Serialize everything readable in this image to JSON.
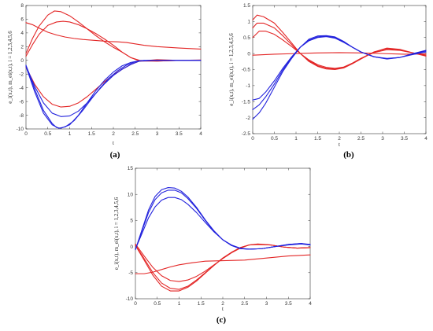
{
  "chart_data": [
    {
      "type": "line",
      "caption": "(a)",
      "xlabel": "t",
      "ylabel": "e_i(x,t), m_ei(x,t), i = 1,2,3,4,5,6",
      "xlim": [
        0,
        4
      ],
      "ylim": [
        -10,
        8
      ],
      "xticks": [
        "0",
        "0.5",
        "1",
        "1.5",
        "2",
        "2.5",
        "3",
        "3.5",
        "4"
      ],
      "yticks": [
        "-10",
        "-8",
        "-6",
        "-4",
        "-2",
        "0",
        "2",
        "4",
        "6",
        "8"
      ],
      "grid": false,
      "series": [
        {
          "color": "#e32626",
          "x": [
            0,
            0.15,
            0.3,
            0.5,
            0.7,
            0.9,
            1.1,
            1.3,
            1.5,
            1.7,
            1.9,
            2.1,
            2.3,
            2.5,
            2.7,
            3,
            3.5,
            4
          ],
          "y": [
            5.5,
            5.2,
            4.7,
            4.1,
            3.7,
            3.4,
            3.2,
            3.05,
            2.95,
            2.85,
            2.75,
            2.7,
            2.6,
            2.4,
            2.2,
            2,
            1.8,
            1.65
          ]
        },
        {
          "color": "#e32626",
          "x": [
            0,
            0.15,
            0.3,
            0.5,
            0.7,
            0.85,
            1,
            1.2,
            1.4,
            1.6,
            1.8,
            2,
            2.2,
            2.4,
            2.6,
            3,
            3.5,
            4
          ],
          "y": [
            0.6,
            2.3,
            3.8,
            5.1,
            5.6,
            5.7,
            5.6,
            5.2,
            4.6,
            3.9,
            3.1,
            2.2,
            1.2,
            0.4,
            0,
            -0.1,
            0,
            0.05
          ]
        },
        {
          "color": "#e32626",
          "x": [
            0,
            0.15,
            0.3,
            0.5,
            0.65,
            0.8,
            1,
            1.2,
            1.4,
            1.6,
            1.8,
            2,
            2.2,
            2.4,
            2.6,
            3,
            3.5,
            4
          ],
          "y": [
            1,
            3.2,
            5,
            6.6,
            7.2,
            7.1,
            6.5,
            5.6,
            4.6,
            3.6,
            2.7,
            1.9,
            1.2,
            0.4,
            -0.1,
            -0.1,
            0,
            0
          ]
        },
        {
          "color": "#e32626",
          "x": [
            0,
            0.2,
            0.4,
            0.6,
            0.8,
            1,
            1.2,
            1.4,
            1.6,
            1.8,
            2,
            2.2,
            2.4,
            2.6,
            3,
            3.5,
            4
          ],
          "y": [
            -1,
            -3.5,
            -5.3,
            -6.4,
            -6.8,
            -6.7,
            -6.2,
            -5.3,
            -4.2,
            -3.1,
            -2.1,
            -1.3,
            -0.6,
            -0.1,
            0.1,
            0,
            0
          ]
        },
        {
          "color": "#2222dd",
          "x": [
            0,
            0.2,
            0.4,
            0.6,
            0.8,
            1,
            1.2,
            1.4,
            1.6,
            1.8,
            2,
            2.2,
            2.4,
            2.6,
            3,
            3.5,
            4
          ],
          "y": [
            -0.8,
            -3.8,
            -6.2,
            -7.7,
            -8.2,
            -8.1,
            -7.4,
            -6.2,
            -4.8,
            -3.4,
            -2.2,
            -1.3,
            -0.6,
            -0.1,
            0,
            0,
            0
          ]
        },
        {
          "color": "#2222dd",
          "x": [
            0,
            0.2,
            0.4,
            0.6,
            0.7,
            0.8,
            1,
            1.2,
            1.4,
            1.6,
            1.8,
            2,
            2.2,
            2.4,
            2.6,
            3,
            3.5,
            4
          ],
          "y": [
            -0.7,
            -4.2,
            -7.3,
            -9.2,
            -9.8,
            -9.9,
            -9.4,
            -8,
            -6.2,
            -4.4,
            -2.9,
            -1.7,
            -0.8,
            -0.3,
            -0.05,
            0,
            0,
            0
          ]
        },
        {
          "color": "#2222dd",
          "x": [
            0,
            0.2,
            0.4,
            0.6,
            0.75,
            0.9,
            1.1,
            1.3,
            1.5,
            1.7,
            1.9,
            2.1,
            2.3,
            2.5,
            2.7,
            3,
            3.5,
            4
          ],
          "y": [
            -0.9,
            -4.6,
            -7.7,
            -9.4,
            -9.9,
            -9.7,
            -8.8,
            -7.3,
            -5.6,
            -4,
            -2.6,
            -1.5,
            -0.7,
            -0.2,
            0,
            0,
            0,
            0
          ]
        }
      ]
    },
    {
      "type": "line",
      "caption": "(b)",
      "xlabel": "t",
      "ylabel": "e_i(x,t), m_ei(x,t), i = 1,2,3,4,5,6",
      "xlim": [
        0,
        4
      ],
      "ylim": [
        -2.5,
        1.5
      ],
      "xticks": [
        "0",
        "0.5",
        "1",
        "1.5",
        "2",
        "2.5",
        "3",
        "3.5",
        "4"
      ],
      "yticks": [
        "-2.5",
        "-2",
        "-1.5",
        "-1",
        "-0.5",
        "0",
        "0.5",
        "1",
        "1.5"
      ],
      "grid": false,
      "series": [
        {
          "color": "#e32626",
          "x": [
            0,
            0.5,
            1,
            1.5,
            2,
            2.5,
            3,
            3.5,
            4
          ],
          "y": [
            -0.05,
            -0.02,
            0,
            0.02,
            0.03,
            0.02,
            0,
            -0.02,
            -0.01
          ]
        },
        {
          "color": "#e32626",
          "x": [
            0,
            0.15,
            0.3,
            0.5,
            0.7,
            0.9,
            1.1,
            1.3,
            1.5,
            1.7,
            1.9,
            2.1,
            2.3,
            2.5,
            2.8,
            3.1,
            3.4,
            3.7,
            4
          ],
          "y": [
            0.5,
            0.7,
            0.7,
            0.6,
            0.42,
            0.22,
            0,
            -0.2,
            -0.35,
            -0.43,
            -0.46,
            -0.42,
            -0.3,
            -0.15,
            0.03,
            0.12,
            0.1,
            0.02,
            -0.05
          ]
        },
        {
          "color": "#e32626",
          "x": [
            0,
            0.1,
            0.25,
            0.5,
            0.7,
            0.9,
            1.1,
            1.3,
            1.5,
            1.7,
            1.9,
            2.1,
            2.3,
            2.5,
            2.8,
            3.1,
            3.4,
            3.7,
            4
          ],
          "y": [
            0.8,
            0.95,
            0.95,
            0.8,
            0.55,
            0.28,
            0,
            -0.22,
            -0.38,
            -0.46,
            -0.48,
            -0.43,
            -0.3,
            -0.15,
            0.05,
            0.15,
            0.12,
            0.02,
            -0.05
          ]
        },
        {
          "color": "#e32626",
          "x": [
            0,
            0.1,
            0.25,
            0.5,
            0.7,
            0.9,
            1.1,
            1.3,
            1.5,
            1.7,
            1.9,
            2.1,
            2.3,
            2.5,
            2.8,
            3.1,
            3.4,
            3.7,
            4
          ],
          "y": [
            1.05,
            1.2,
            1.15,
            0.95,
            0.65,
            0.33,
            0,
            -0.25,
            -0.4,
            -0.48,
            -0.5,
            -0.45,
            -0.32,
            -0.17,
            0.05,
            0.17,
            0.13,
            0.02,
            -0.08
          ]
        },
        {
          "color": "#2222dd",
          "x": [
            0,
            0.15,
            0.3,
            0.5,
            0.7,
            0.9,
            1.1,
            1.3,
            1.5,
            1.7,
            1.9,
            2.1,
            2.3,
            2.5,
            2.8,
            3.1,
            3.4,
            3.7,
            4
          ],
          "y": [
            -1.45,
            -1.4,
            -1.2,
            -0.85,
            -0.45,
            -0.1,
            0.2,
            0.4,
            0.5,
            0.53,
            0.48,
            0.35,
            0.2,
            0.05,
            -0.1,
            -0.15,
            -0.12,
            -0.03,
            0.05
          ]
        },
        {
          "color": "#2222dd",
          "x": [
            0,
            0.15,
            0.3,
            0.5,
            0.7,
            0.9,
            1.1,
            1.3,
            1.5,
            1.7,
            1.9,
            2.1,
            2.3,
            2.5,
            2.8,
            3.1,
            3.4,
            3.7,
            4
          ],
          "y": [
            -1.75,
            -1.6,
            -1.35,
            -0.95,
            -0.5,
            -0.12,
            0.2,
            0.42,
            0.52,
            0.55,
            0.5,
            0.37,
            0.2,
            0.05,
            -0.1,
            -0.16,
            -0.12,
            -0.02,
            0.08
          ]
        },
        {
          "color": "#2222dd",
          "x": [
            0,
            0.15,
            0.3,
            0.5,
            0.7,
            0.9,
            1.1,
            1.3,
            1.5,
            1.7,
            1.9,
            2.1,
            2.3,
            2.5,
            2.8,
            3.1,
            3.4,
            3.7,
            4
          ],
          "y": [
            -2.05,
            -1.85,
            -1.55,
            -1.05,
            -0.55,
            -0.15,
            0.2,
            0.45,
            0.55,
            0.56,
            0.52,
            0.38,
            0.2,
            0.05,
            -0.1,
            -0.17,
            -0.12,
            0,
            0.1
          ]
        }
      ]
    },
    {
      "type": "line",
      "caption": "(c)",
      "xlabel": "t",
      "ylabel": "e_i(x,t), m_ei(x,t), i = 1,2,3,4,5,6",
      "xlim": [
        0,
        4
      ],
      "ylim": [
        -10,
        15
      ],
      "xticks": [
        "0",
        "0.5",
        "1",
        "1.5",
        "2",
        "2.5",
        "3",
        "3.5",
        "4"
      ],
      "yticks": [
        "-10",
        "-5",
        "0",
        "5",
        "10",
        "15"
      ],
      "grid": false,
      "series": [
        {
          "color": "#e32626",
          "x": [
            0,
            0.2,
            0.4,
            0.6,
            0.8,
            1,
            1.3,
            1.6,
            2,
            2.5,
            3,
            3.5,
            4
          ],
          "y": [
            -5.2,
            -5.2,
            -4.9,
            -4.4,
            -3.9,
            -3.5,
            -3.1,
            -2.8,
            -2.7,
            -2.6,
            -2.2,
            -1.8,
            -1.6
          ]
        },
        {
          "color": "#e32626",
          "x": [
            0,
            0.2,
            0.4,
            0.6,
            0.8,
            1,
            1.2,
            1.4,
            1.6,
            1.8,
            2,
            2.2,
            2.4,
            2.6,
            2.8,
            3.1,
            3.4,
            3.7,
            4
          ],
          "y": [
            0.5,
            -1.8,
            -4,
            -5.6,
            -6.5,
            -6.7,
            -6.4,
            -5.7,
            -4.7,
            -3.5,
            -2.3,
            -1.2,
            -0.3,
            0.3,
            0.5,
            0.3,
            -0.1,
            -0.3,
            -0.2
          ]
        },
        {
          "color": "#e32626",
          "x": [
            0,
            0.2,
            0.4,
            0.6,
            0.8,
            1,
            1.2,
            1.4,
            1.6,
            1.8,
            2,
            2.2,
            2.4,
            2.6,
            2.8,
            3.1,
            3.4,
            3.7,
            4
          ],
          "y": [
            0.3,
            -2.3,
            -5,
            -7,
            -8,
            -8.2,
            -7.6,
            -6.4,
            -5,
            -3.6,
            -2.2,
            -1.1,
            -0.2,
            0.3,
            0.4,
            0.3,
            -0.1,
            -0.3,
            -0.2
          ]
        },
        {
          "color": "#e32626",
          "x": [
            0,
            0.2,
            0.4,
            0.6,
            0.8,
            1,
            1.2,
            1.4,
            1.6,
            1.8,
            2,
            2.2,
            2.4,
            2.6,
            2.8,
            3.1,
            3.4,
            3.7,
            4
          ],
          "y": [
            0.2,
            -2.6,
            -5.5,
            -7.6,
            -8.5,
            -8.5,
            -7.8,
            -6.6,
            -5.1,
            -3.6,
            -2.2,
            -1.1,
            -0.2,
            0.3,
            0.4,
            0.3,
            -0.1,
            -0.3,
            -0.2
          ]
        },
        {
          "color": "#2222dd",
          "x": [
            0,
            0.15,
            0.3,
            0.45,
            0.6,
            0.75,
            0.9,
            1.05,
            1.2,
            1.4,
            1.6,
            1.8,
            2,
            2.2,
            2.4,
            2.6,
            2.9,
            3.2,
            3.5,
            3.8,
            4
          ],
          "y": [
            -0.5,
            2.5,
            5.5,
            7.6,
            8.9,
            9.4,
            9.4,
            9,
            8.1,
            6.5,
            4.6,
            2.8,
            1.3,
            0.3,
            -0.3,
            -0.5,
            -0.4,
            0,
            0.3,
            0.5,
            0.3
          ]
        },
        {
          "color": "#2222dd",
          "x": [
            0,
            0.15,
            0.3,
            0.45,
            0.6,
            0.75,
            0.9,
            1.05,
            1.2,
            1.4,
            1.6,
            1.8,
            2,
            2.2,
            2.4,
            2.6,
            2.9,
            3.2,
            3.5,
            3.8,
            4
          ],
          "y": [
            -0.6,
            3,
            6.5,
            9,
            10.3,
            10.8,
            10.8,
            10.3,
            9.2,
            7.3,
            5,
            2.9,
            1.3,
            0.2,
            -0.4,
            -0.5,
            -0.4,
            0,
            0.4,
            0.6,
            0.3
          ]
        },
        {
          "color": "#2222dd",
          "x": [
            0,
            0.15,
            0.3,
            0.45,
            0.6,
            0.75,
            0.9,
            1.05,
            1.2,
            1.4,
            1.6,
            1.8,
            2,
            2.2,
            2.4,
            2.6,
            2.9,
            3.2,
            3.5,
            3.8,
            4
          ],
          "y": [
            -0.6,
            3.2,
            7,
            9.6,
            10.9,
            11.3,
            11.2,
            10.6,
            9.5,
            7.5,
            5.1,
            3,
            1.3,
            0.2,
            -0.4,
            -0.5,
            -0.4,
            0,
            0.4,
            0.6,
            0.4
          ]
        }
      ]
    }
  ]
}
